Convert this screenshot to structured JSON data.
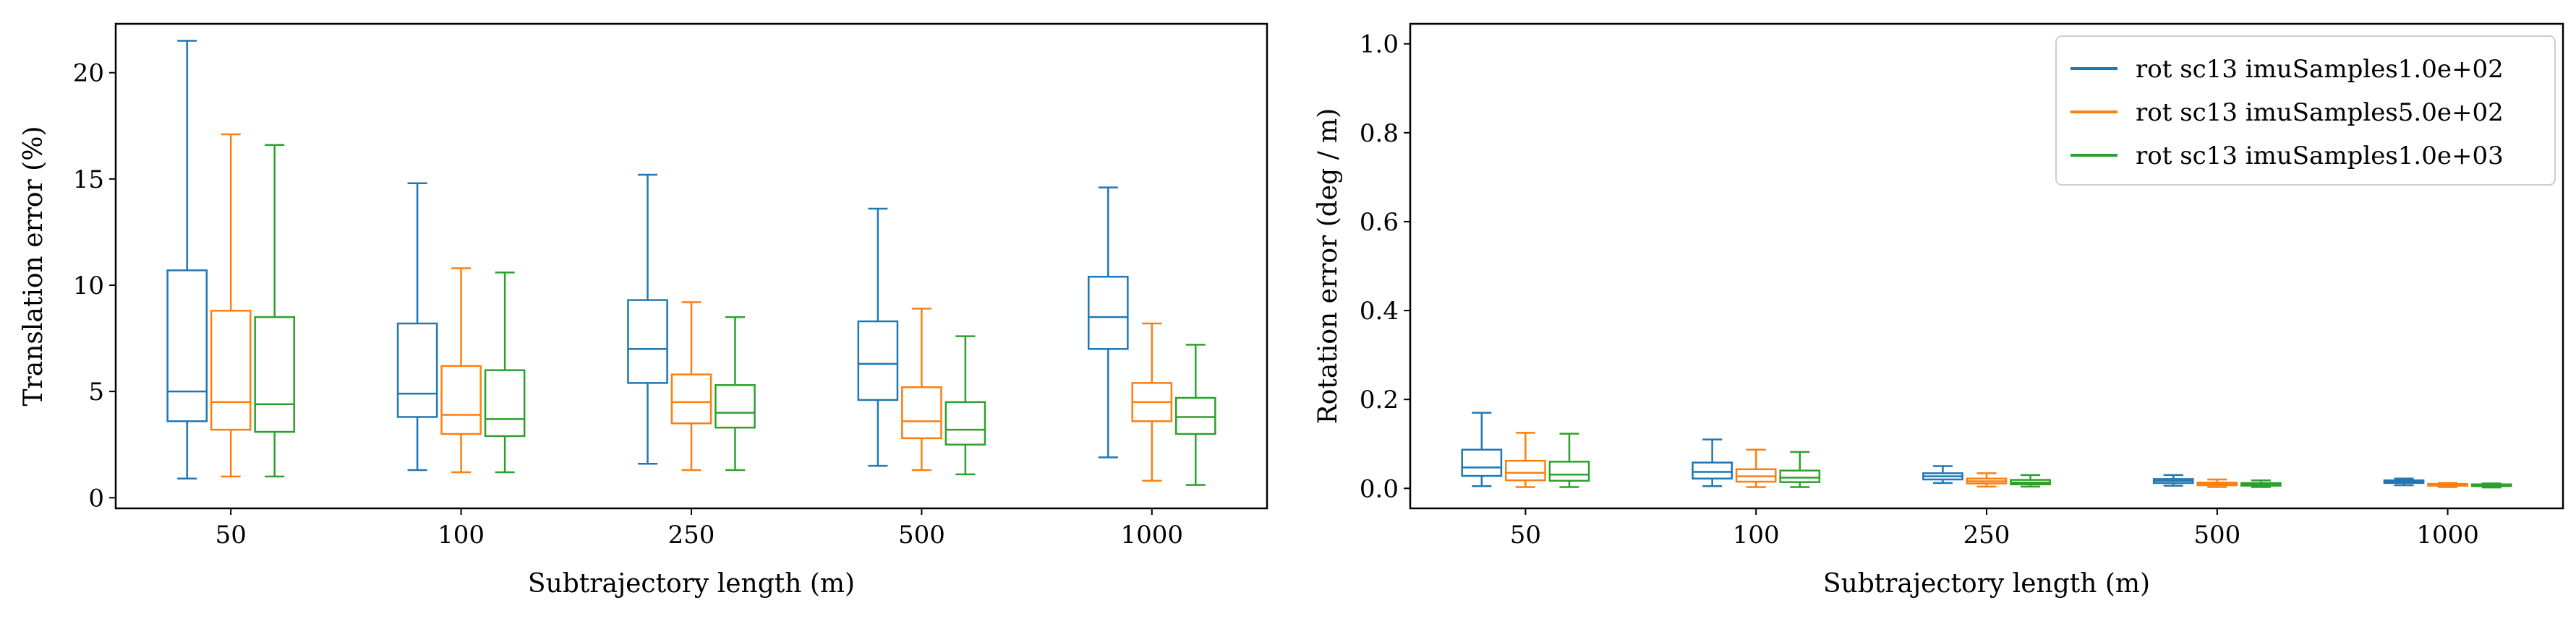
{
  "chart_data": [
    {
      "type": "box",
      "xlabel": "Subtrajectory length (m)",
      "ylabel": "Translation error (%)",
      "ylim": [
        -0.5,
        22.3
      ],
      "yticks": [
        0,
        5,
        10,
        15,
        20
      ],
      "categories": [
        "50",
        "100",
        "250",
        "500",
        "1000"
      ],
      "series": [
        {
          "name": "rot sc13 imuSamples1.0e+02",
          "color": "#1f77b4",
          "boxes": [
            {
              "min": 0.9,
              "q1": 3.6,
              "median": 5.0,
              "q3": 10.7,
              "max": 21.5
            },
            {
              "min": 1.3,
              "q1": 3.8,
              "median": 4.9,
              "q3": 8.2,
              "max": 14.8
            },
            {
              "min": 1.6,
              "q1": 5.4,
              "median": 7.0,
              "q3": 9.3,
              "max": 15.2
            },
            {
              "min": 1.5,
              "q1": 4.6,
              "median": 6.3,
              "q3": 8.3,
              "max": 13.6
            },
            {
              "min": 1.9,
              "q1": 7.0,
              "median": 8.5,
              "q3": 10.4,
              "max": 14.6
            }
          ]
        },
        {
          "name": "rot sc13 imuSamples5.0e+02",
          "color": "#ff7f0e",
          "boxes": [
            {
              "min": 1.0,
              "q1": 3.2,
              "median": 4.5,
              "q3": 8.8,
              "max": 17.1
            },
            {
              "min": 1.2,
              "q1": 3.0,
              "median": 3.9,
              "q3": 6.2,
              "max": 10.8
            },
            {
              "min": 1.3,
              "q1": 3.5,
              "median": 4.5,
              "q3": 5.8,
              "max": 9.2
            },
            {
              "min": 1.3,
              "q1": 2.8,
              "median": 3.6,
              "q3": 5.2,
              "max": 8.9
            },
            {
              "min": 0.8,
              "q1": 3.6,
              "median": 4.5,
              "q3": 5.4,
              "max": 8.2
            }
          ]
        },
        {
          "name": "rot sc13 imuSamples1.0e+03",
          "color": "#2ca02c",
          "boxes": [
            {
              "min": 1.0,
              "q1": 3.1,
              "median": 4.4,
              "q3": 8.5,
              "max": 16.6
            },
            {
              "min": 1.2,
              "q1": 2.9,
              "median": 3.7,
              "q3": 6.0,
              "max": 10.6
            },
            {
              "min": 1.3,
              "q1": 3.3,
              "median": 4.0,
              "q3": 5.3,
              "max": 8.5
            },
            {
              "min": 1.1,
              "q1": 2.5,
              "median": 3.2,
              "q3": 4.5,
              "max": 7.6
            },
            {
              "min": 0.6,
              "q1": 3.0,
              "median": 3.8,
              "q3": 4.7,
              "max": 7.2
            }
          ]
        }
      ]
    },
    {
      "type": "box",
      "xlabel": "Subtrajectory length (m)",
      "ylabel": "Rotation error (deg / m)",
      "ylim": [
        -0.045,
        1.045
      ],
      "yticks": [
        "0.0",
        "0.2",
        "0.4",
        "0.6",
        "0.8",
        "1.0"
      ],
      "categories": [
        "50",
        "100",
        "250",
        "500",
        "1000"
      ],
      "legend": "top-right",
      "series": [
        {
          "name": "rot sc13 imuSamples1.0e+02",
          "color": "#1f77b4",
          "boxes": [
            {
              "min": 0.005,
              "q1": 0.028,
              "median": 0.047,
              "q3": 0.087,
              "max": 0.17
            },
            {
              "min": 0.005,
              "q1": 0.022,
              "median": 0.037,
              "q3": 0.058,
              "max": 0.11
            },
            {
              "min": 0.012,
              "q1": 0.02,
              "median": 0.027,
              "q3": 0.034,
              "max": 0.05
            },
            {
              "min": 0.006,
              "q1": 0.012,
              "median": 0.017,
              "q3": 0.021,
              "max": 0.03
            },
            {
              "min": 0.007,
              "q1": 0.012,
              "median": 0.015,
              "q3": 0.018,
              "max": 0.022
            }
          ]
        },
        {
          "name": "rot sc13 imuSamples5.0e+02",
          "color": "#ff7f0e",
          "boxes": [
            {
              "min": 0.003,
              "q1": 0.018,
              "median": 0.035,
              "q3": 0.062,
              "max": 0.125
            },
            {
              "min": 0.003,
              "q1": 0.015,
              "median": 0.027,
              "q3": 0.043,
              "max": 0.087
            },
            {
              "min": 0.004,
              "q1": 0.011,
              "median": 0.016,
              "q3": 0.022,
              "max": 0.034
            },
            {
              "min": 0.003,
              "q1": 0.007,
              "median": 0.01,
              "q3": 0.013,
              "max": 0.02
            },
            {
              "min": 0.003,
              "q1": 0.006,
              "median": 0.008,
              "q3": 0.01,
              "max": 0.012
            }
          ]
        },
        {
          "name": "rot sc13 imuSamples1.0e+03",
          "color": "#2ca02c",
          "boxes": [
            {
              "min": 0.003,
              "q1": 0.017,
              "median": 0.031,
              "q3": 0.06,
              "max": 0.123
            },
            {
              "min": 0.003,
              "q1": 0.014,
              "median": 0.024,
              "q3": 0.04,
              "max": 0.082
            },
            {
              "min": 0.004,
              "q1": 0.009,
              "median": 0.013,
              "q3": 0.019,
              "max": 0.03
            },
            {
              "min": 0.003,
              "q1": 0.006,
              "median": 0.009,
              "q3": 0.012,
              "max": 0.018
            },
            {
              "min": 0.002,
              "q1": 0.005,
              "median": 0.007,
              "q3": 0.009,
              "max": 0.011
            }
          ]
        }
      ]
    }
  ]
}
